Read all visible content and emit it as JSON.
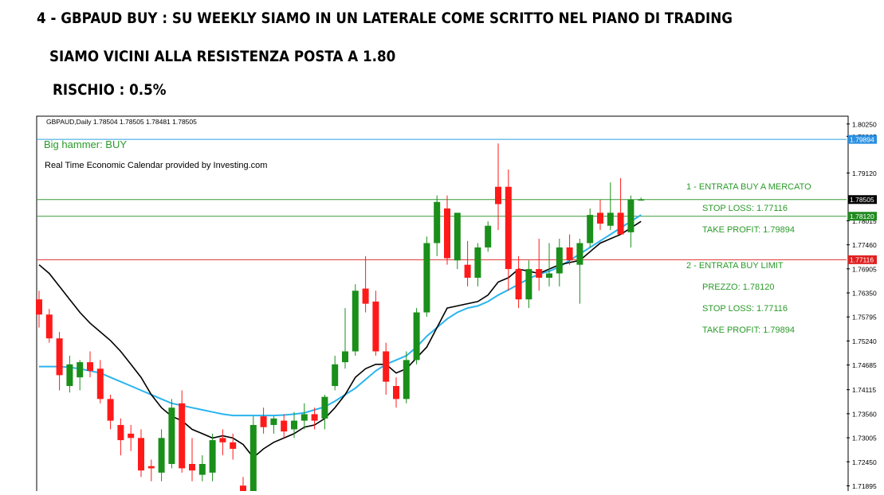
{
  "headings": {
    "line1": "4 - GBPAUD BUY : SU WEEKLY SIAMO IN UN LATERALE COME SCRITTO NEL PIANO DI TRADING",
    "line2": "SIAMO VICINI ALLA RESISTENZA POSTA A 1.80",
    "line3": "RISCHIO : 0.5%"
  },
  "chart_header": {
    "symbol_info": "GBPAUD,Daily  1.78504 1.78505 1.78481 1.78505",
    "signal": "Big hammer: BUY",
    "calendar_note": "Real Time Economic Calendar provided by Investing.com"
  },
  "annotations": {
    "entry1_title": "1 - ENTRATA BUY A MERCATO",
    "entry1_sl": "STOP LOSS: 1.77116",
    "entry1_tp": "TAKE PROFIT: 1.79894",
    "entry2_title": "2 - ENTRATA BUY LIMIT",
    "entry2_price": "PREZZO: 1.78120",
    "entry2_sl": "STOP LOSS: 1.77116",
    "entry2_tp": "TAKE PROFIT: 1.79894"
  },
  "colors": {
    "bull": "#1a8f1a",
    "bear": "#ff1a1a",
    "fast_ma": "#000000",
    "slow_ma": "#2ab4ee",
    "tp_line": "#2aa0e0",
    "entry_line": "#3a9a3a",
    "sl_line": "#e03030",
    "annotation_text": "#2a9a2a",
    "price_tag_blue": "#2a8fe0",
    "price_tag_green": "#208a20",
    "price_tag_red": "#e02020"
  },
  "chart_data": {
    "type": "candlestick",
    "y_ticks": [
      "1.80250",
      "1.79965",
      "1.79120",
      "1.78015",
      "1.77460",
      "1.76905",
      "1.76350",
      "1.75795",
      "1.75240",
      "1.74685",
      "1.74115",
      "1.73560",
      "1.73005",
      "1.72450",
      "1.71895"
    ],
    "ylim": [
      1.7161,
      1.8043
    ],
    "levels": [
      {
        "name": "take_profit",
        "value": 1.79894,
        "label": "1.79894"
      },
      {
        "name": "current_price",
        "value": 1.78505,
        "label": "1.78505"
      },
      {
        "name": "buy_limit",
        "value": 1.7812,
        "label": "1.78120"
      },
      {
        "name": "stop_loss",
        "value": 1.77116,
        "label": "1.77116"
      }
    ],
    "candles": [
      {
        "o": 1.762,
        "h": 1.764,
        "l": 1.7555,
        "c": 1.7585
      },
      {
        "o": 1.7585,
        "h": 1.7598,
        "l": 1.752,
        "c": 1.753
      },
      {
        "o": 1.753,
        "h": 1.7545,
        "l": 1.741,
        "c": 1.7445
      },
      {
        "o": 1.742,
        "h": 1.749,
        "l": 1.7405,
        "c": 1.747
      },
      {
        "o": 1.744,
        "h": 1.748,
        "l": 1.741,
        "c": 1.7475
      },
      {
        "o": 1.7475,
        "h": 1.75,
        "l": 1.744,
        "c": 1.7455
      },
      {
        "o": 1.746,
        "h": 1.748,
        "l": 1.738,
        "c": 1.739
      },
      {
        "o": 1.739,
        "h": 1.74,
        "l": 1.732,
        "c": 1.734
      },
      {
        "o": 1.733,
        "h": 1.7345,
        "l": 1.726,
        "c": 1.7295
      },
      {
        "o": 1.731,
        "h": 1.733,
        "l": 1.727,
        "c": 1.73
      },
      {
        "o": 1.73,
        "h": 1.732,
        "l": 1.721,
        "c": 1.7225
      },
      {
        "o": 1.7235,
        "h": 1.725,
        "l": 1.72,
        "c": 1.723
      },
      {
        "o": 1.722,
        "h": 1.732,
        "l": 1.72,
        "c": 1.73
      },
      {
        "o": 1.724,
        "h": 1.739,
        "l": 1.723,
        "c": 1.737
      },
      {
        "o": 1.738,
        "h": 1.741,
        "l": 1.722,
        "c": 1.723
      },
      {
        "o": 1.724,
        "h": 1.73,
        "l": 1.72,
        "c": 1.7225
      },
      {
        "o": 1.7215,
        "h": 1.726,
        "l": 1.72,
        "c": 1.724
      },
      {
        "o": 1.722,
        "h": 1.731,
        "l": 1.72,
        "c": 1.7295
      },
      {
        "o": 1.73,
        "h": 1.732,
        "l": 1.726,
        "c": 1.729
      },
      {
        "o": 1.729,
        "h": 1.731,
        "l": 1.725,
        "c": 1.7275
      },
      {
        "o": 1.719,
        "h": 1.721,
        "l": 1.715,
        "c": 1.716
      },
      {
        "o": 1.715,
        "h": 1.735,
        "l": 1.714,
        "c": 1.733
      },
      {
        "o": 1.735,
        "h": 1.737,
        "l": 1.731,
        "c": 1.7325
      },
      {
        "o": 1.733,
        "h": 1.735,
        "l": 1.731,
        "c": 1.7345
      },
      {
        "o": 1.734,
        "h": 1.7355,
        "l": 1.73,
        "c": 1.7315
      },
      {
        "o": 1.732,
        "h": 1.736,
        "l": 1.73,
        "c": 1.734
      },
      {
        "o": 1.734,
        "h": 1.738,
        "l": 1.732,
        "c": 1.7355
      },
      {
        "o": 1.7355,
        "h": 1.737,
        "l": 1.732,
        "c": 1.734
      },
      {
        "o": 1.7345,
        "h": 1.74,
        "l": 1.732,
        "c": 1.7395
      },
      {
        "o": 1.742,
        "h": 1.749,
        "l": 1.741,
        "c": 1.747
      },
      {
        "o": 1.7475,
        "h": 1.76,
        "l": 1.746,
        "c": 1.75
      },
      {
        "o": 1.75,
        "h": 1.7655,
        "l": 1.749,
        "c": 1.764
      },
      {
        "o": 1.7645,
        "h": 1.772,
        "l": 1.759,
        "c": 1.761
      },
      {
        "o": 1.7615,
        "h": 1.764,
        "l": 1.749,
        "c": 1.75
      },
      {
        "o": 1.75,
        "h": 1.752,
        "l": 1.74,
        "c": 1.743
      },
      {
        "o": 1.742,
        "h": 1.744,
        "l": 1.737,
        "c": 1.739
      },
      {
        "o": 1.739,
        "h": 1.75,
        "l": 1.738,
        "c": 1.748
      },
      {
        "o": 1.748,
        "h": 1.76,
        "l": 1.747,
        "c": 1.759
      },
      {
        "o": 1.759,
        "h": 1.7765,
        "l": 1.758,
        "c": 1.775
      },
      {
        "o": 1.775,
        "h": 1.786,
        "l": 1.772,
        "c": 1.7845
      },
      {
        "o": 1.783,
        "h": 1.786,
        "l": 1.77,
        "c": 1.7715
      },
      {
        "o": 1.771,
        "h": 1.7815,
        "l": 1.769,
        "c": 1.782
      },
      {
        "o": 1.77,
        "h": 1.7755,
        "l": 1.765,
        "c": 1.767
      },
      {
        "o": 1.767,
        "h": 1.775,
        "l": 1.765,
        "c": 1.774
      },
      {
        "o": 1.774,
        "h": 1.78,
        "l": 1.773,
        "c": 1.779
      },
      {
        "o": 1.788,
        "h": 1.798,
        "l": 1.778,
        "c": 1.784
      },
      {
        "o": 1.788,
        "h": 1.792,
        "l": 1.764,
        "c": 1.769
      },
      {
        "o": 1.769,
        "h": 1.772,
        "l": 1.76,
        "c": 1.762
      },
      {
        "o": 1.762,
        "h": 1.771,
        "l": 1.76,
        "c": 1.769
      },
      {
        "o": 1.769,
        "h": 1.776,
        "l": 1.764,
        "c": 1.767
      },
      {
        "o": 1.767,
        "h": 1.775,
        "l": 1.765,
        "c": 1.768
      },
      {
        "o": 1.768,
        "h": 1.776,
        "l": 1.765,
        "c": 1.774
      },
      {
        "o": 1.774,
        "h": 1.777,
        "l": 1.77,
        "c": 1.771
      },
      {
        "o": 1.77,
        "h": 1.776,
        "l": 1.761,
        "c": 1.775
      },
      {
        "o": 1.775,
        "h": 1.783,
        "l": 1.774,
        "c": 1.7815
      },
      {
        "o": 1.782,
        "h": 1.785,
        "l": 1.778,
        "c": 1.7795
      },
      {
        "o": 1.779,
        "h": 1.789,
        "l": 1.778,
        "c": 1.782
      },
      {
        "o": 1.782,
        "h": 1.79,
        "l": 1.777,
        "c": 1.777
      },
      {
        "o": 1.7775,
        "h": 1.786,
        "l": 1.774,
        "c": 1.785
      },
      {
        "o": 1.785,
        "h": 1.7855,
        "l": 1.7848,
        "c": 1.7851
      }
    ],
    "ma_fast": [
      1.77,
      1.768,
      1.765,
      1.762,
      1.759,
      1.7565,
      1.7545,
      1.7525,
      1.75,
      1.747,
      1.744,
      1.74,
      1.737,
      1.735,
      1.734,
      1.732,
      1.731,
      1.73,
      1.7305,
      1.73,
      1.7285,
      1.7255,
      1.7275,
      1.729,
      1.73,
      1.731,
      1.7325,
      1.733,
      1.7345,
      1.737,
      1.74,
      1.744,
      1.746,
      1.747,
      1.747,
      1.745,
      1.746,
      1.7485,
      1.751,
      1.7555,
      1.76,
      1.7605,
      1.761,
      1.7615,
      1.763,
      1.766,
      1.767,
      1.769,
      1.7685,
      1.768,
      1.769,
      1.77,
      1.7705,
      1.771,
      1.773,
      1.775,
      1.776,
      1.777,
      1.7785,
      1.78
    ],
    "ma_slow": [
      1.7465,
      1.7465,
      1.7465,
      1.7463,
      1.746,
      1.7455,
      1.745,
      1.744,
      1.743,
      1.742,
      1.741,
      1.74,
      1.739,
      1.738,
      1.7375,
      1.737,
      1.7365,
      1.736,
      1.7355,
      1.7352,
      1.7352,
      1.7352,
      1.7352,
      1.7352,
      1.7353,
      1.7355,
      1.7358,
      1.7365,
      1.7372,
      1.7385,
      1.74,
      1.7415,
      1.7435,
      1.7455,
      1.747,
      1.748,
      1.749,
      1.751,
      1.7535,
      1.7555,
      1.7575,
      1.759,
      1.76,
      1.7605,
      1.7615,
      1.763,
      1.7642,
      1.7655,
      1.7668,
      1.7678,
      1.7685,
      1.7695,
      1.771,
      1.7725,
      1.774,
      1.7755,
      1.777,
      1.7785,
      1.78,
      1.7815
    ]
  }
}
